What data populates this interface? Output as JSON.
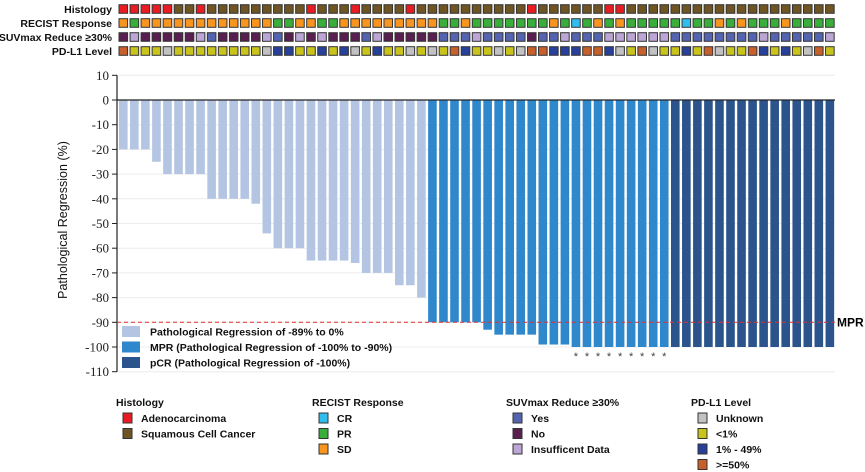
{
  "chart_data": {
    "type": "bar",
    "ylabel": "Pathological Regression (%)",
    "ylim": [
      -110,
      10
    ],
    "yticks": [
      10,
      0,
      -10,
      -20,
      -30,
      -40,
      -50,
      -60,
      -70,
      -80,
      -90,
      -100,
      -110
    ],
    "grid": true,
    "values": [
      -20,
      -20,
      -20,
      -25,
      -30,
      -30,
      -30,
      -30,
      -40,
      -40,
      -40,
      -40,
      -42,
      -54,
      -60,
      -60,
      -60,
      -65,
      -65,
      -65,
      -65,
      -66,
      -70,
      -70,
      -70,
      -75,
      -75,
      -80,
      -90,
      -90,
      -90,
      -90,
      -90,
      -93,
      -95,
      -95,
      -95,
      -95,
      -99,
      -99,
      -99,
      -100,
      -100,
      -100,
      -100,
      -100,
      -100,
      -100,
      -100,
      -100,
      -100,
      -100,
      -100,
      -100,
      -100,
      -100,
      -100,
      -100,
      -100,
      -100,
      -100,
      -100,
      -100,
      -100,
      -100
    ],
    "groups": [
      "light",
      "light",
      "light",
      "light",
      "light",
      "light",
      "light",
      "light",
      "light",
      "light",
      "light",
      "light",
      "light",
      "light",
      "light",
      "light",
      "light",
      "light",
      "light",
      "light",
      "light",
      "light",
      "light",
      "light",
      "light",
      "light",
      "light",
      "light",
      "mpr",
      "mpr",
      "mpr",
      "mpr",
      "mpr",
      "mpr",
      "mpr",
      "mpr",
      "mpr",
      "mpr",
      "mpr",
      "mpr",
      "mpr",
      "mpr",
      "mpr",
      "mpr",
      "mpr",
      "mpr",
      "mpr",
      "mpr",
      "mpr",
      "mpr",
      "pcr",
      "pcr",
      "pcr",
      "pcr",
      "pcr",
      "pcr",
      "pcr",
      "pcr",
      "pcr",
      "pcr",
      "pcr",
      "pcr",
      "pcr",
      "pcr",
      "pcr"
    ],
    "series_legend": [
      {
        "key": "light",
        "label": "Pathological Regression of -89% to 0%",
        "color": "#b3c5e3"
      },
      {
        "key": "mpr",
        "label": "MPR (Pathological Regression of -100% to -90%)",
        "color": "#2f87cc"
      },
      {
        "key": "pcr",
        "label": "pCR (Pathological Regression of -100%)",
        "color": "#2b548d"
      }
    ],
    "threshold": {
      "value": -90,
      "label": "MPR",
      "color": "#e03030"
    },
    "asterisk_indices": [
      41,
      42,
      43,
      44,
      45,
      46,
      47,
      48,
      49
    ],
    "asterisk_symbol": "*",
    "tracks": [
      {
        "label": "Histology",
        "values": [
          "A",
          "A",
          "A",
          "A",
          "A",
          "S",
          "S",
          "A",
          "S",
          "S",
          "S",
          "S",
          "S",
          "S",
          "S",
          "S",
          "S",
          "A",
          "S",
          "S",
          "S",
          "A",
          "S",
          "S",
          "S",
          "S",
          "A",
          "S",
          "S",
          "S",
          "S",
          "S",
          "S",
          "S",
          "S",
          "S",
          "S",
          "A",
          "S",
          "S",
          "S",
          "S",
          "S",
          "S",
          "A",
          "A",
          "S",
          "S",
          "S",
          "S",
          "S",
          "S",
          "S",
          "S",
          "S",
          "S",
          "S",
          "S",
          "S",
          "S",
          "S",
          "S",
          "S",
          "S",
          "S"
        ]
      },
      {
        "label": "RECIST Response",
        "values": [
          "SD",
          "PR",
          "SD",
          "SD",
          "SD",
          "SD",
          "SD",
          "SD",
          "SD",
          "SD",
          "SD",
          "SD",
          "SD",
          "SD",
          "PR",
          "PR",
          "SD",
          "SD",
          "PR",
          "PR",
          "SD",
          "SD",
          "SD",
          "SD",
          "SD",
          "SD",
          "SD",
          "SD",
          "SD",
          "PR",
          "PR",
          "SD",
          "PR",
          "PR",
          "PR",
          "PR",
          "PR",
          "PR",
          "PR",
          "SD",
          "PR",
          "CR",
          "PR",
          "SD",
          "PR",
          "SD",
          "PR",
          "PR",
          "PR",
          "PR",
          "PR",
          "CR",
          "PR",
          "PR",
          "SD",
          "PR",
          "SD",
          "PR",
          "PR",
          "PR",
          "SD",
          "PR",
          "PR",
          "PR",
          "PR"
        ]
      },
      {
        "label": "SUVmax Reduce ≥30%",
        "values": [
          "No",
          "ID",
          "No",
          "No",
          "No",
          "No",
          "No",
          "ID",
          "Yes",
          "No",
          "No",
          "No",
          "No",
          "ID",
          "Yes",
          "No",
          "ID",
          "No",
          "ID",
          "No",
          "No",
          "No",
          "Yes",
          "ID",
          "No",
          "No",
          "No",
          "No",
          "No",
          "Yes",
          "Yes",
          "Yes",
          "ID",
          "Yes",
          "Yes",
          "Yes",
          "Yes",
          "No",
          "Yes",
          "Yes",
          "ID",
          "Yes",
          "Yes",
          "Yes",
          "ID",
          "ID",
          "ID",
          "ID",
          "ID",
          "ID",
          "Yes",
          "Yes",
          "Yes",
          "Yes",
          "Yes",
          "Yes",
          "Yes",
          "Yes",
          "ID",
          "Yes",
          "Yes",
          "Yes",
          "Yes",
          "Yes",
          "ID"
        ]
      },
      {
        "label": "PD-L1 Level",
        "values": [
          "H",
          "L",
          "L",
          "L",
          "U",
          "L",
          "L",
          "L",
          "L",
          "L",
          "L",
          "L",
          "L",
          "U",
          "M",
          "M",
          "L",
          "L",
          "M",
          "L",
          "M",
          "U",
          "L",
          "M",
          "L",
          "L",
          "U",
          "L",
          "U",
          "L",
          "H",
          "M",
          "L",
          "L",
          "U",
          "L",
          "U",
          "H",
          "H",
          "M",
          "M",
          "M",
          "H",
          "H",
          "M",
          "U",
          "L",
          "H",
          "U",
          "L",
          "L",
          "M",
          "L",
          "H",
          "U",
          "L",
          "L",
          "H",
          "M",
          "L",
          "M",
          "L",
          "U",
          "H",
          "L"
        ]
      }
    ],
    "track_legends": [
      {
        "title": "Histology",
        "items": [
          {
            "key": "A",
            "label": "Adenocarcinoma",
            "color": "#e81c22"
          },
          {
            "key": "S",
            "label": "Squamous Cell Cancer",
            "color": "#6f5524"
          }
        ]
      },
      {
        "title": "RECIST Response",
        "items": [
          {
            "key": "CR",
            "label": "CR",
            "color": "#2fbded"
          },
          {
            "key": "PR",
            "label": "PR",
            "color": "#3aae3a"
          },
          {
            "key": "SD",
            "label": "SD",
            "color": "#f7951e"
          }
        ]
      },
      {
        "title": "SUVmax Reduce ≥30%",
        "items": [
          {
            "key": "Yes",
            "label": "Yes",
            "color": "#5564b0"
          },
          {
            "key": "No",
            "label": "No",
            "color": "#581f50"
          },
          {
            "key": "ID",
            "label": "Insufficent Data",
            "color": "#bba6d6"
          }
        ]
      },
      {
        "title": "PD-L1 Level",
        "items": [
          {
            "key": "U",
            "label": "Unknown",
            "color": "#c2c2c2"
          },
          {
            "key": "L",
            "label": "<1%",
            "color": "#c9c41c"
          },
          {
            "key": "M",
            "label": "1% - 49%",
            "color": "#27409a"
          },
          {
            "key": "H",
            "label": ">=50%",
            "color": "#c8602b"
          }
        ]
      }
    ]
  }
}
